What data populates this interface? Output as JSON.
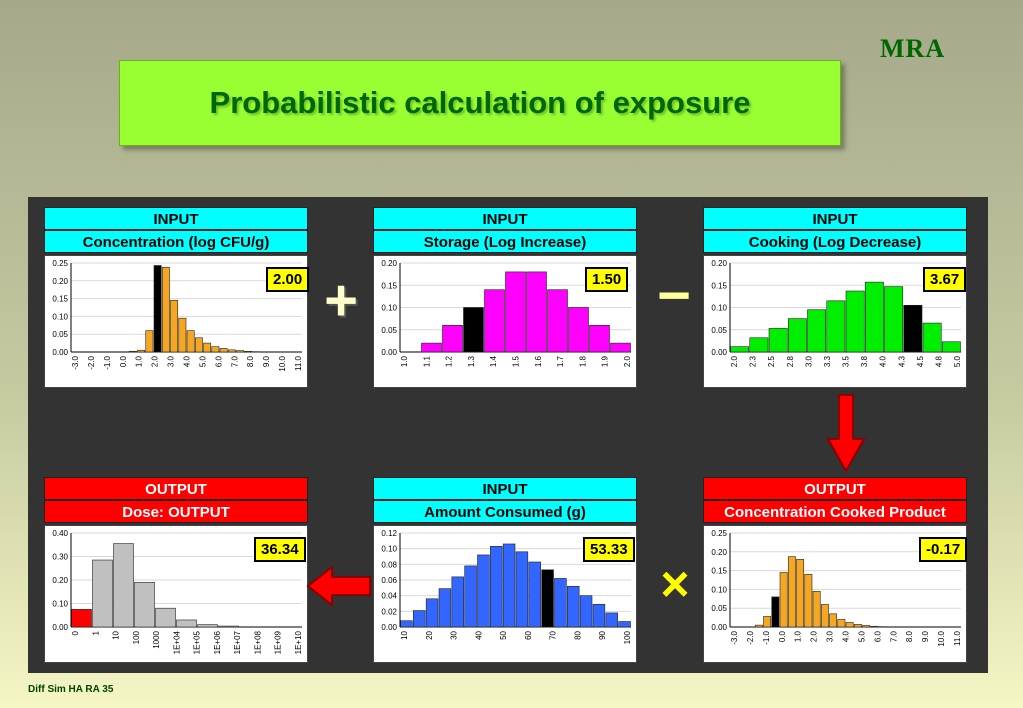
{
  "logo": "MRA",
  "title": "Probabilistic calculation of exposure",
  "footer": "Diff Sim HA RA 35",
  "operators": {
    "plus": "+",
    "minus": "−",
    "times": "×"
  },
  "colors": {
    "bg_top": "#a5a98a",
    "bg_bottom": "#f4f6c4",
    "board": "#333333",
    "title_bg": "#99ff33",
    "title_text": "#006600",
    "input_header": "#00ffff",
    "output_header": "#ff0000",
    "value_box": "#ffff00",
    "arrow": "#ff0000"
  },
  "panels": [
    {
      "id": "p1",
      "kind": "input",
      "label1": "INPUT",
      "label2": "Concentration (log CFU/g)",
      "value": "2.00",
      "chart_data": {
        "type": "bar",
        "ylim": [
          0,
          0.25
        ],
        "yticks": [
          "0.25",
          "0.20",
          "0.15",
          "0.10",
          "0.05",
          "0.00"
        ],
        "color": "#f5a623",
        "xticklabels": [
          "-3.0",
          "-2.0",
          "-1.0",
          "0.0",
          "1.0",
          "2.0",
          "3.0",
          "4.0",
          "5.0",
          "6.0",
          "7.0",
          "8.0",
          "9.0",
          "10.0",
          "11.0"
        ],
        "bins": 28,
        "values": [
          0,
          0,
          0,
          0,
          0,
          0,
          0,
          0.002,
          0.005,
          0.06,
          0.243,
          0.238,
          0.145,
          0.095,
          0.06,
          0.04,
          0.025,
          0.015,
          0.01,
          0.006,
          0.004,
          0.002,
          0.001,
          0,
          0,
          0,
          0,
          0
        ],
        "highlight": 10
      }
    },
    {
      "id": "p2",
      "kind": "input",
      "label1": "INPUT",
      "label2": "Storage (Log Increase)",
      "value": "1.50",
      "chart_data": {
        "type": "bar",
        "ylim": [
          0,
          0.2
        ],
        "yticks": [
          "0.20",
          "0.15",
          "0.10",
          "0.05",
          "0.00"
        ],
        "color": "#ff00ff",
        "xticklabels": [
          "1.0",
          "1.1",
          "1.2",
          "1.3",
          "1.4",
          "1.5",
          "1.6",
          "1.7",
          "1.8",
          "1.9",
          "2.0"
        ],
        "bins": 11,
        "values": [
          0,
          0.02,
          0.06,
          0.1,
          0.14,
          0.18,
          0.18,
          0.14,
          0.1,
          0.06,
          0.02
        ],
        "highlight": 3
      }
    },
    {
      "id": "p3",
      "kind": "input",
      "label1": "INPUT",
      "label2": "Cooking (Log Decrease)",
      "value": "3.67",
      "chart_data": {
        "type": "bar",
        "ylim": [
          0,
          0.2
        ],
        "yticks": [
          "0.20",
          "0.15",
          "0.10",
          "0.05",
          "0.00"
        ],
        "color": "#00ee00",
        "xticklabels": [
          "2.0",
          "2.3",
          "2.5",
          "2.8",
          "3.0",
          "3.3",
          "3.5",
          "3.8",
          "4.0",
          "4.3",
          "4.5",
          "4.8",
          "5.0"
        ],
        "bins": 12,
        "values": [
          0.012,
          0.032,
          0.053,
          0.075,
          0.095,
          0.115,
          0.137,
          0.157,
          0.147,
          0.105,
          0.065,
          0.023
        ],
        "highlight": 9
      }
    },
    {
      "id": "p4",
      "kind": "output",
      "label1": "OUTPUT",
      "label2": "Dose: OUTPUT",
      "value": "36.34",
      "chart_data": {
        "type": "bar",
        "ylim": [
          0,
          0.4
        ],
        "yticks": [
          "0.40",
          "0.30",
          "0.20",
          "0.10",
          "0.00"
        ],
        "color": "#c0c0c0",
        "xticklabels": [
          "0",
          "1",
          "10",
          "100",
          "1000",
          "1E+04",
          "1E+05",
          "1E+06",
          "1E+07",
          "1E+08",
          "1E+09",
          "1E+10"
        ],
        "bins": 11,
        "values": [
          0.075,
          0.285,
          0.355,
          0.19,
          0.08,
          0.03,
          0.01,
          0.004,
          0,
          0,
          0
        ],
        "highlight": 0,
        "highlight_color": "#ff0000"
      }
    },
    {
      "id": "p5",
      "kind": "input",
      "label1": "INPUT",
      "label2": "Amount Consumed (g)",
      "value": "53.33",
      "chart_data": {
        "type": "bar",
        "ylim": [
          0,
          0.12
        ],
        "yticks": [
          "0.12",
          "0.10",
          "0.08",
          "0.06",
          "0.04",
          "0.02",
          "0.00"
        ],
        "color": "#3366ff",
        "xticklabels": [
          "10",
          "20",
          "30",
          "40",
          "50",
          "60",
          "70",
          "80",
          "90",
          "100"
        ],
        "bins": 18,
        "values": [
          0.008,
          0.021,
          0.036,
          0.049,
          0.064,
          0.078,
          0.092,
          0.103,
          0.106,
          0.096,
          0.083,
          0.073,
          0.062,
          0.052,
          0.04,
          0.029,
          0.018,
          0.007
        ],
        "highlight": 11
      }
    },
    {
      "id": "p6",
      "kind": "output",
      "label1": "OUTPUT",
      "label2": "Concentration Cooked Product",
      "value": "-0.17",
      "chart_data": {
        "type": "bar",
        "ylim": [
          0,
          0.25
        ],
        "yticks": [
          "0.25",
          "0.20",
          "0.15",
          "0.10",
          "0.05",
          "0.00"
        ],
        "color": "#f5a623",
        "xticklabels": [
          "-3.0",
          "-2.0",
          "-1.0",
          "0.0",
          "1.0",
          "2.0",
          "3.0",
          "4.0",
          "5.0",
          "6.0",
          "7.0",
          "8.0",
          "9.0",
          "10.0",
          "11.0"
        ],
        "bins": 28,
        "values": [
          0,
          0,
          0,
          0.005,
          0.028,
          0.08,
          0.145,
          0.187,
          0.18,
          0.14,
          0.095,
          0.06,
          0.035,
          0.02,
          0.012,
          0.007,
          0.004,
          0.002,
          0.001,
          0,
          0,
          0,
          0,
          0,
          0,
          0,
          0,
          0
        ],
        "highlight": 5
      }
    }
  ]
}
